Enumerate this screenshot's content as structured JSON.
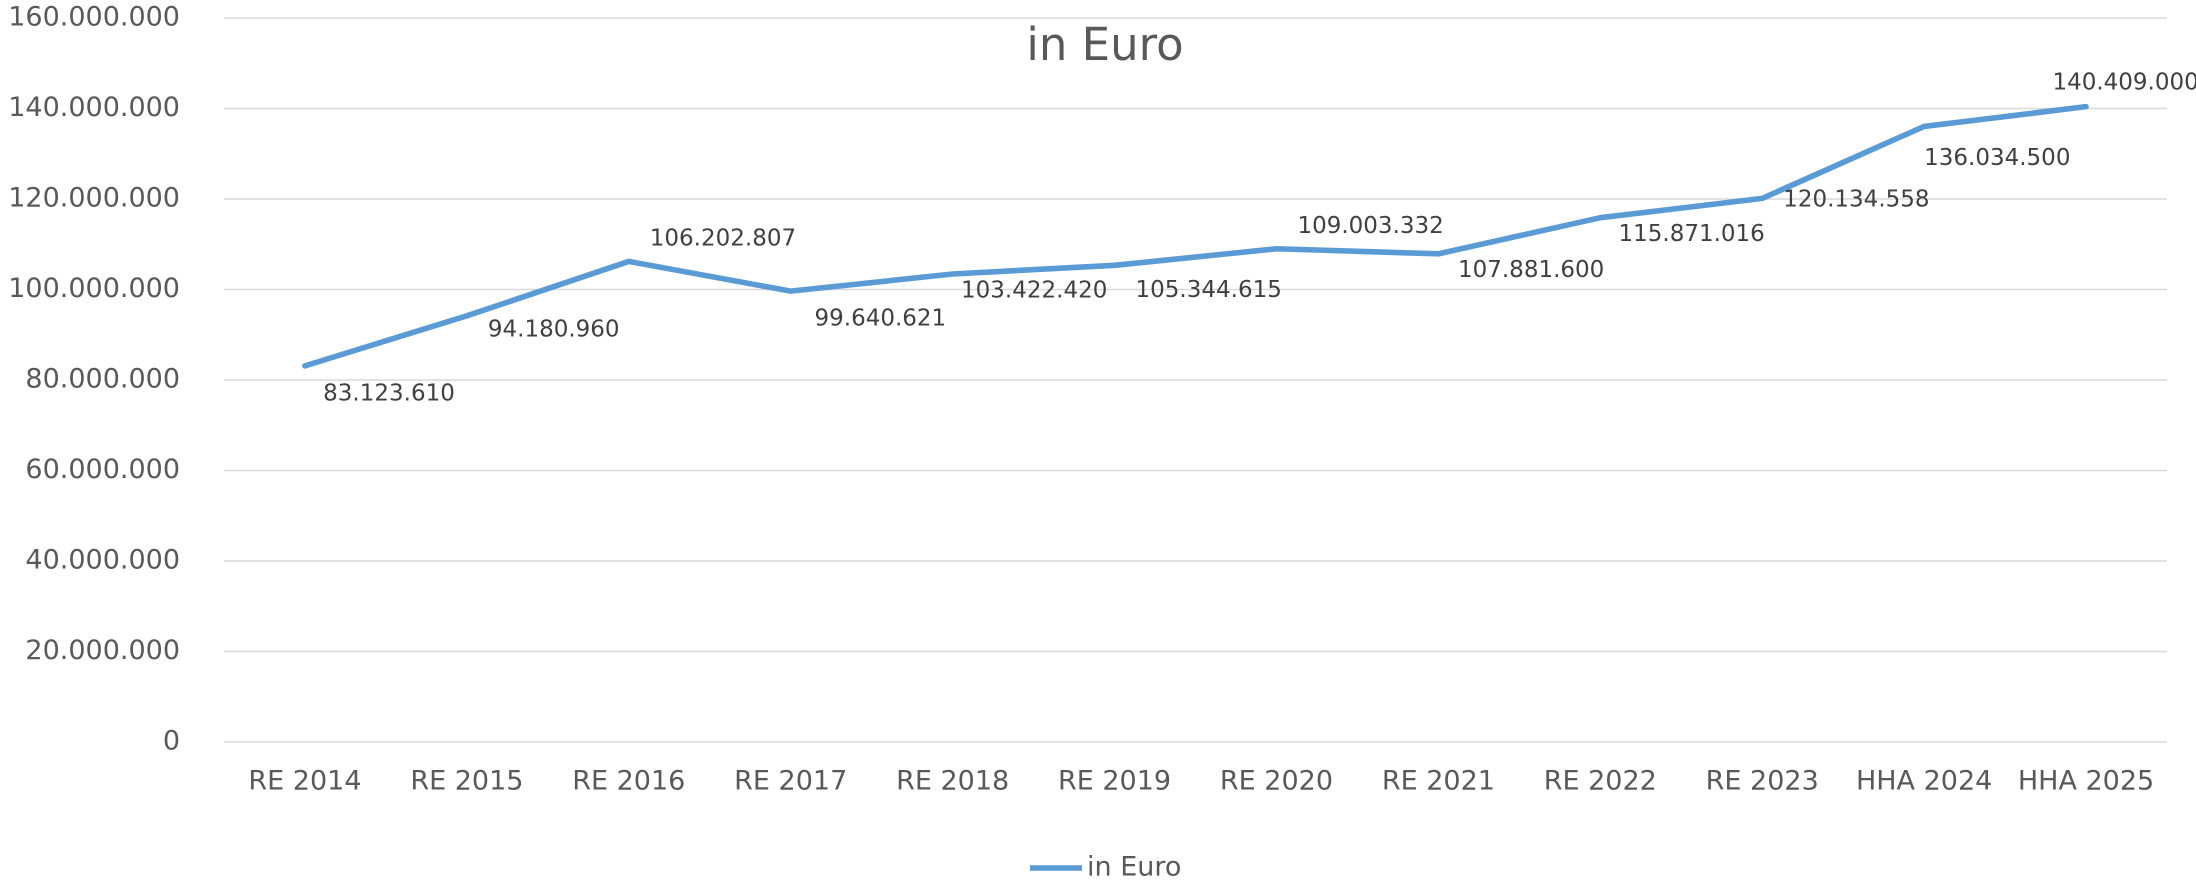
{
  "chart_data": {
    "type": "line",
    "title": "in Euro",
    "categories": [
      "RE 2014",
      "RE 2015",
      "RE 2016",
      "RE 2017",
      "RE 2018",
      "RE 2019",
      "RE 2020",
      "RE 2021",
      "RE 2022",
      "RE 2023",
      "HHA 2024",
      "HHA 2025"
    ],
    "series": [
      {
        "name": "in Euro",
        "color": "#5b9bd5",
        "values": [
          83123610,
          94180960,
          106202807,
          99640621,
          103422420,
          105344615,
          109003332,
          107881600,
          115871016,
          120134558,
          136034500,
          140409000
        ],
        "value_labels": [
          "83.123.610",
          "94.180.960",
          "106.202.807",
          "99.640.621",
          "103.422.420",
          "105.344.615",
          "109.003.332",
          "107.881.600",
          "115.871.016",
          "120.134.558",
          "136.034.500",
          "140.409.000"
        ]
      }
    ],
    "ylim": [
      0,
      160000000
    ],
    "yticks": [
      0,
      {
        "value": 20000000,
        "label": "20.000.000"
      },
      {
        "value": 40000000,
        "label": "40.000.000"
      },
      {
        "value": 60000000,
        "label": "60.000.000"
      },
      {
        "value": 80000000,
        "label": "80.000.000"
      },
      {
        "value": 100000000,
        "label": "100.000.000"
      },
      {
        "value": 120000000,
        "label": "120.000.000"
      },
      {
        "value": 140000000,
        "label": "140.000.000"
      },
      {
        "value": 160000000,
        "label": "160.000.000"
      }
    ],
    "grid": true,
    "legend": "bottom"
  }
}
